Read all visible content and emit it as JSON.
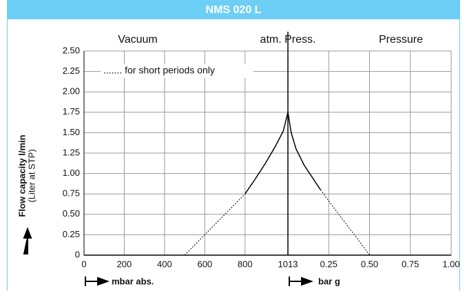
{
  "chart_data": {
    "type": "line",
    "title": "NMS 020 L",
    "regions": [
      "Vacuum",
      "atm. Press.",
      "Pressure"
    ],
    "annotation": "....... for short periods only",
    "ylabel": "Flow capacity l/min",
    "ylabel_sub": "(Liter at STP)",
    "xlabel": "mbar abs.",
    "x2label": "bar g",
    "xlim": [
      0,
      1013
    ],
    "xticks": [
      0,
      200,
      400,
      600,
      800,
      1013
    ],
    "x2lim": [
      0,
      {
        "value": 1,
        "label": "1.00"
      }
    ],
    "x2ticks": [
      0.25,
      {
        "value": 0.5,
        "label": "0.50"
      },
      0.75,
      {
        "value": 1,
        "label": "1.00"
      }
    ],
    "ylim": [
      0,
      {
        "value": 2.5,
        "label": "2.50"
      }
    ],
    "yticks": [
      0,
      0.25,
      {
        "value": 0.5,
        "label": "0.50"
      },
      0.75,
      {
        "value": 1,
        "label": "1.00"
      },
      1.25,
      {
        "value": 1.5,
        "label": "1.50"
      },
      1.75,
      {
        "value": 2,
        "label": "2.00"
      },
      2.25,
      {
        "value": 2.5,
        "label": "2.50"
      }
    ],
    "grid": true,
    "color": "#000000",
    "series": [
      {
        "x": [
          500,
          600,
          700,
          800
        ],
        "values": [
          0,
          0.25,
          0.5,
          0.75
        ],
        "style": "dashed"
      },
      {
        "x": [
          800,
          850,
          900,
          950,
          990,
          1013
        ],
        "values": [
          0.75,
          0.93,
          1.12,
          1.33,
          1.52,
          1.75
        ],
        "style": "solid"
      },
      {
        "x": [
          0,
          0.02,
          0.05,
          0.1,
          0.15,
          0.2
        ],
        "values": [
          1.75,
          1.5,
          1.3,
          1.1,
          0.95,
          0.8
        ],
        "style": "solid",
        "axis": "x2"
      },
      {
        "x": [
          0.2,
          0.3,
          0.4,
          0.5
        ],
        "values": [
          0.8,
          0.53,
          0.27,
          0
        ],
        "style": "dashed",
        "axis": "x2"
      }
    ]
  }
}
